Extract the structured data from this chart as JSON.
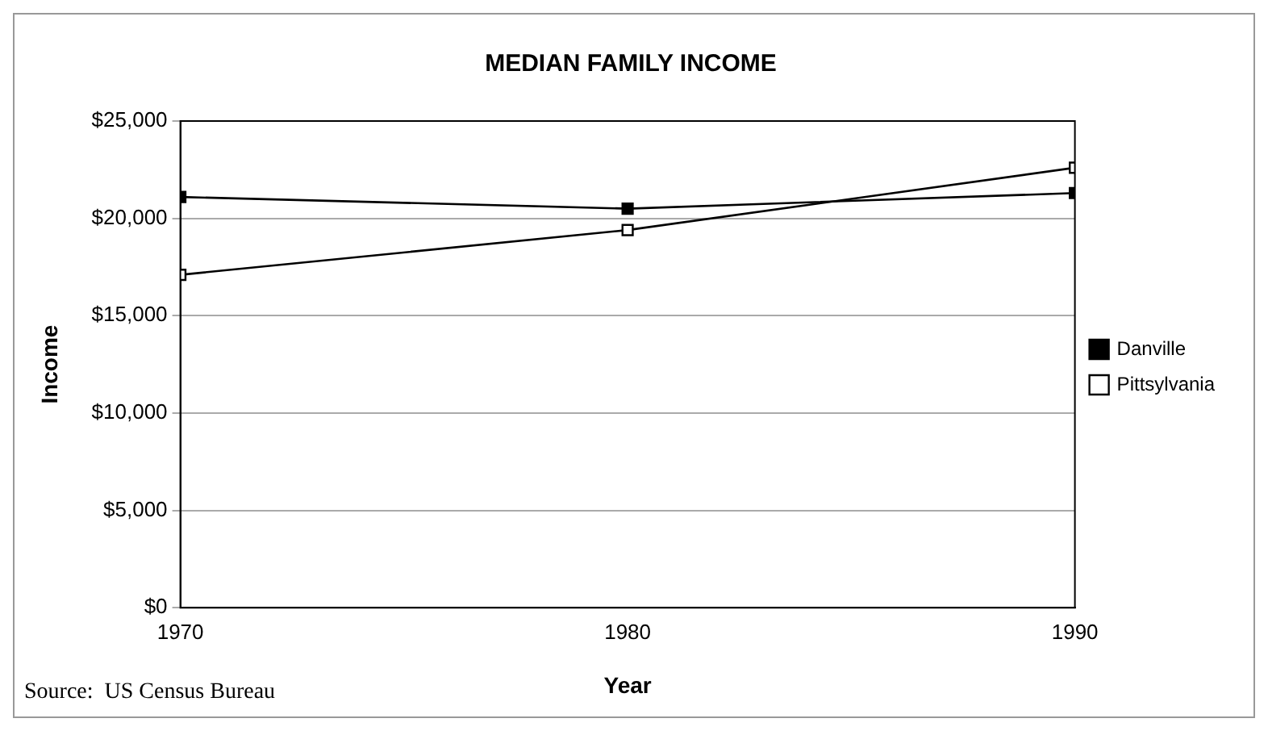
{
  "chart_data": {
    "type": "line",
    "title": "MEDIAN FAMILY INCOME",
    "xlabel": "Year",
    "ylabel": "Income",
    "x": [
      1970,
      1980,
      1990
    ],
    "series": [
      {
        "name": "Danville",
        "color": "#000000",
        "values": [
          21100,
          20500,
          21300
        ]
      },
      {
        "name": "Pittsylvania",
        "color": "#000000",
        "values": [
          17100,
          19400,
          22600
        ]
      }
    ],
    "xlim": [
      1970,
      1990
    ],
    "xticks": [
      1970,
      1980,
      1990
    ],
    "ylim": [
      0,
      25000
    ],
    "yticks": [
      {
        "value": 0,
        "label": "$0"
      },
      {
        "value": 5000,
        "label": "$5,000"
      },
      {
        "value": 10000,
        "label": "$10,000"
      },
      {
        "value": 15000,
        "label": "$15,000"
      },
      {
        "value": 20000,
        "label": "$20,000"
      },
      {
        "value": 25000,
        "label": "$25,000"
      }
    ],
    "grid": "y",
    "legend": "right",
    "marker": "square",
    "line_style": "solid",
    "annotations": [
      "Source:  US Census Bureau"
    ]
  }
}
